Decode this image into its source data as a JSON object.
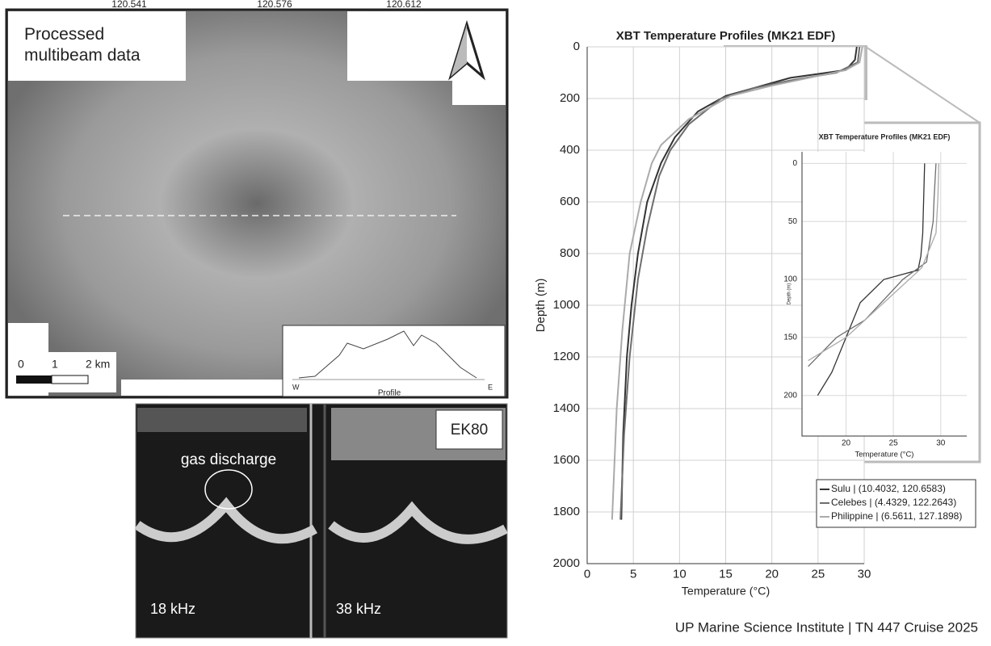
{
  "map": {
    "lon_ticks": [
      "120.541",
      "120.576",
      "120.612"
    ],
    "label": "Processed multibeam data",
    "scale": [
      "0",
      "1",
      "2 km"
    ],
    "profile": {
      "left": "W",
      "right": "E",
      "xlabel": "Profile"
    }
  },
  "echogram": {
    "annotation": "gas discharge",
    "instrument": "EK80",
    "panels": [
      "18 kHz",
      "38 kHz"
    ]
  },
  "footer": "UP Marine Science Institute | TN 447 Cruise 2025",
  "chart_data": [
    {
      "type": "line",
      "title": "XBT Temperature Profiles (MK21 EDF)",
      "xlabel": "Temperature (°C)",
      "ylabel": "Depth (m)",
      "xlim": [
        0,
        30
      ],
      "xticks": [
        0,
        5,
        10,
        15,
        20,
        25,
        30
      ],
      "ylim": [
        0,
        2000
      ],
      "yticks": [
        0,
        200,
        400,
        600,
        800,
        1000,
        1200,
        1400,
        1600,
        1800,
        2000
      ],
      "y_inverted": true,
      "grid": true,
      "legend": "lower right",
      "series": [
        {
          "name": "Sulu | (10.4032, 120.6583)",
          "color": "#333333",
          "x": [
            29.2,
            29,
            28,
            22,
            19,
            15,
            12,
            9.5,
            8,
            6.5,
            5.5,
            4.8,
            4.3,
            3.9,
            3.7
          ],
          "values": [
            0,
            50,
            90,
            120,
            150,
            190,
            250,
            350,
            450,
            600,
            800,
            1000,
            1200,
            1500,
            1830
          ]
        },
        {
          "name": "Celebes | (4.4329, 122.2643)",
          "color": "#6e6e6e",
          "x": [
            29.5,
            29.3,
            27,
            22,
            18,
            14.5,
            11,
            9,
            7.8,
            6.5,
            5.5,
            4.6,
            4,
            3.6
          ],
          "values": [
            0,
            60,
            100,
            130,
            160,
            200,
            300,
            400,
            500,
            700,
            900,
            1200,
            1500,
            1830
          ]
        },
        {
          "name": "Philippine | (6.5611, 127.1898)",
          "color": "#aaaaaa",
          "x": [
            29.8,
            29.5,
            28,
            24,
            20,
            15.5,
            11,
            8,
            7,
            5.8,
            4.6,
            3.8,
            3.2,
            2.7
          ],
          "values": [
            0,
            60,
            90,
            120,
            150,
            190,
            280,
            380,
            450,
            600,
            800,
            1100,
            1400,
            1830
          ]
        }
      ]
    },
    {
      "type": "line",
      "title": "XBT Temperature Profiles (MK21 EDF)",
      "xlabel": "Temperature (°C)",
      "ylabel": "Depth (m)",
      "xlim": [
        15.35,
        32.75
      ],
      "xticks": [
        20,
        25,
        30
      ],
      "ylim": [
        -10,
        235
      ],
      "yticks": [
        0,
        50,
        100,
        150,
        200
      ],
      "y_inverted": true,
      "grid": true,
      "series": [
        {
          "color": "#333333",
          "x": [
            28.3,
            28.2,
            28.1,
            27.9,
            27.6,
            24,
            21.5,
            20,
            18.5,
            17
          ],
          "values": [
            0,
            30,
            60,
            80,
            92,
            100,
            120,
            150,
            180,
            200
          ]
        },
        {
          "color": "#6e6e6e",
          "x": [
            29.5,
            29.3,
            29.2,
            28.5,
            26,
            22,
            19,
            16
          ],
          "values": [
            0,
            30,
            50,
            85,
            100,
            135,
            150,
            175
          ]
        },
        {
          "color": "#aaaaaa",
          "x": [
            29.8,
            29.7,
            29.5,
            28,
            24,
            20,
            16
          ],
          "values": [
            0,
            30,
            60,
            90,
            120,
            150,
            170
          ]
        }
      ]
    }
  ]
}
